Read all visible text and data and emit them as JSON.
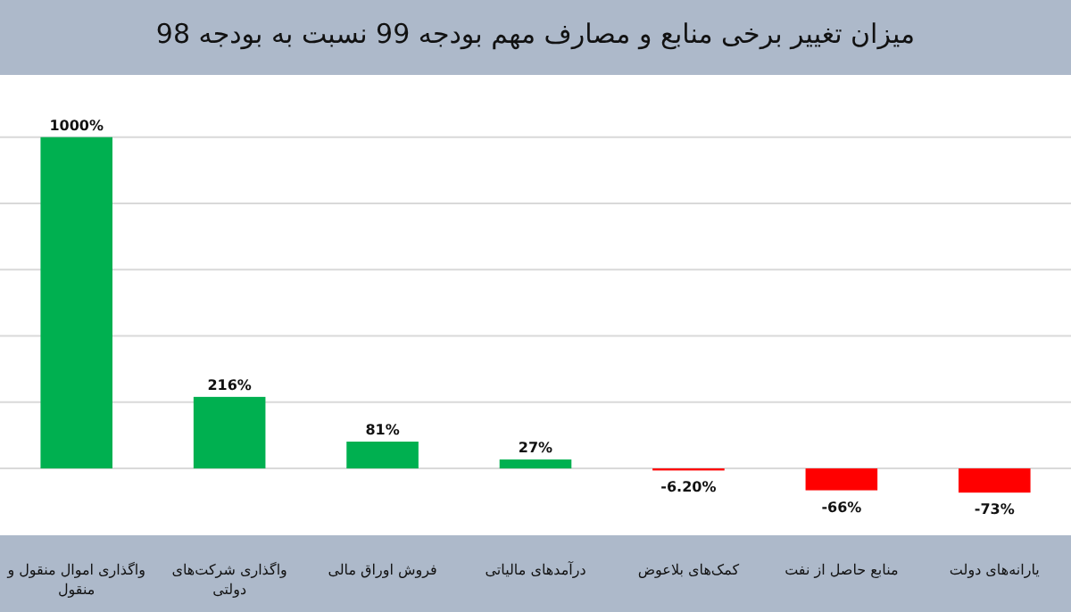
{
  "chart_data": {
    "type": "bar",
    "title": "میزان تغییر برخی منابع و مصارف مهم بودجه 99 نسبت به بودجه 98",
    "categories": [
      "واگذاری اموال منقول و منقول",
      "واگذاری شرکت‌های دولتی",
      "فروش اوراق مالی",
      "درآمدهای مالیاتی",
      "کمک‌های بلاعوض",
      "منابع حاصل از نفت",
      "یارانه‌های دولت"
    ],
    "values": [
      1000,
      216,
      81,
      27,
      -6.2,
      -66,
      -73
    ],
    "value_labels": [
      "1000%",
      "216%",
      "81%",
      "27%",
      "-6.20%",
      "-66%",
      "-73%"
    ],
    "colors": [
      "#00b050",
      "#00b050",
      "#00b050",
      "#00b050",
      "#ff0000",
      "#ff0000",
      "#ff0000"
    ],
    "yticks": [
      {
        "value": 0,
        "label": null
      },
      {
        "value": 200,
        "label": null
      },
      {
        "value": 400,
        "label": null
      },
      {
        "value": 600,
        "label": null
      },
      {
        "value": 800,
        "label": null
      },
      {
        "value": 1000,
        "label": null
      }
    ],
    "grid": "y",
    "tick_labels": "x"
  }
}
